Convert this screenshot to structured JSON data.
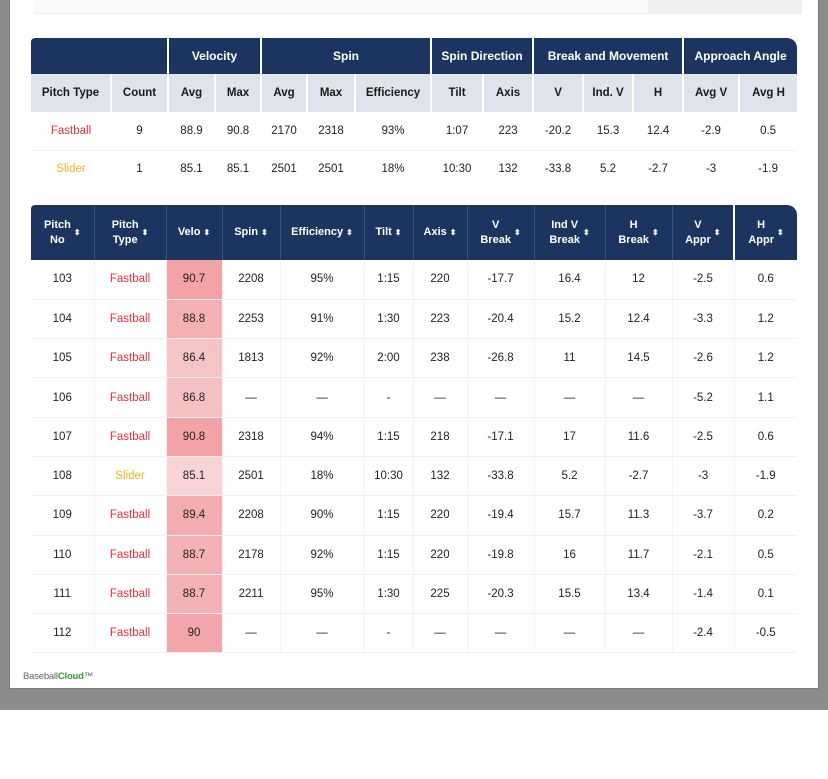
{
  "summary": {
    "groups": [
      {
        "label": ""
      },
      {
        "label": "Velocity"
      },
      {
        "label": "Spin"
      },
      {
        "label": "Spin Direction"
      },
      {
        "label": "Break and Movement"
      },
      {
        "label": "Approach Angle"
      }
    ],
    "columns": [
      "Pitch Type",
      "Count",
      "Avg",
      "Max",
      "Avg",
      "Max",
      "Efficiency",
      "Tilt",
      "Axis",
      "V",
      "Ind. V",
      "H",
      "Avg V",
      "Avg H"
    ],
    "rows": [
      {
        "type": "Fastball",
        "cells": [
          "Fastball",
          "9",
          "88.9",
          "90.8",
          "2170",
          "2318",
          "93%",
          "1:07",
          "223",
          "-20.2",
          "15.3",
          "12.4",
          "-2.9",
          "0.5"
        ]
      },
      {
        "type": "Slider",
        "cells": [
          "Slider",
          "1",
          "85.1",
          "85.1",
          "2501",
          "2501",
          "18%",
          "10:30",
          "132",
          "-33.8",
          "5.2",
          "-2.7",
          "-3",
          "-1.9"
        ]
      }
    ]
  },
  "pitches": {
    "columns": [
      {
        "line1": "Pitch",
        "line2": "No"
      },
      {
        "line1": "Pitch",
        "line2": "Type"
      },
      {
        "line1": "Velo",
        "line2": ""
      },
      {
        "line1": "Spin",
        "line2": ""
      },
      {
        "line1": "Efficiency",
        "line2": ""
      },
      {
        "line1": "Tilt",
        "line2": ""
      },
      {
        "line1": "Axis",
        "line2": ""
      },
      {
        "line1": "V",
        "line2": "Break"
      },
      {
        "line1": "Ind V",
        "line2": "Break"
      },
      {
        "line1": "H",
        "line2": "Break"
      },
      {
        "line1": "V",
        "line2": "Appr"
      },
      {
        "line1": "H",
        "line2": "Appr"
      }
    ],
    "sort_glyph": "⬍",
    "rows": [
      {
        "type": "Fastball",
        "velo_shade": "#f3a3a6",
        "cells": [
          "103",
          "Fastball",
          "90.7",
          "2208",
          "95%",
          "1:15",
          "220",
          "-17.7",
          "16.4",
          "12",
          "-2.5",
          "0.6"
        ]
      },
      {
        "type": "Fastball",
        "velo_shade": "#f4b0b2",
        "cells": [
          "104",
          "Fastball",
          "88.8",
          "2253",
          "91%",
          "1:30",
          "223",
          "-20.4",
          "15.2",
          "12.4",
          "-3.3",
          "1.2"
        ]
      },
      {
        "type": "Fastball",
        "velo_shade": "#f6c4c5",
        "cells": [
          "105",
          "Fastball",
          "86.4",
          "1813",
          "92%",
          "2:00",
          "238",
          "-26.8",
          "11",
          "14.5",
          "-2.6",
          "1.2"
        ]
      },
      {
        "type": "Fastball",
        "velo_shade": "#f5c1c2",
        "cells": [
          "106",
          "Fastball",
          "86.8",
          "—",
          "—",
          "-",
          "—",
          "—",
          "—",
          "—",
          "-5.2",
          "1.1"
        ]
      },
      {
        "type": "Fastball",
        "velo_shade": "#f3a3a6",
        "cells": [
          "107",
          "Fastball",
          "90.8",
          "2318",
          "94%",
          "1:15",
          "218",
          "-17.1",
          "17",
          "11.6",
          "-2.5",
          "0.6"
        ]
      },
      {
        "type": "Slider",
        "velo_shade": "#f8d4d5",
        "cells": [
          "108",
          "Slider",
          "85.1",
          "2501",
          "18%",
          "10:30",
          "132",
          "-33.8",
          "5.2",
          "-2.7",
          "-3",
          "-1.9"
        ]
      },
      {
        "type": "Fastball",
        "velo_shade": "#f4acae",
        "cells": [
          "109",
          "Fastball",
          "89.4",
          "2208",
          "90%",
          "1:15",
          "220",
          "-19.4",
          "15.7",
          "11.3",
          "-3.7",
          "0.2"
        ]
      },
      {
        "type": "Fastball",
        "velo_shade": "#f4b1b3",
        "cells": [
          "110",
          "Fastball",
          "88.7",
          "2178",
          "92%",
          "1:15",
          "220",
          "-19.8",
          "16",
          "11.7",
          "-2.1",
          "0.5"
        ]
      },
      {
        "type": "Fastball",
        "velo_shade": "#f4b1b3",
        "cells": [
          "111",
          "Fastball",
          "88.7",
          "2211",
          "95%",
          "1:30",
          "225",
          "-20.3",
          "15.5",
          "13.4",
          "-1.4",
          "0.1"
        ]
      },
      {
        "type": "Fastball",
        "velo_shade": "#f3a6a9",
        "cells": [
          "112",
          "Fastball",
          "90",
          "—",
          "—",
          "-",
          "—",
          "—",
          "—",
          "—",
          "-2.4",
          "-0.5"
        ]
      }
    ]
  },
  "brand": {
    "part1": "Baseball",
    "part2": "Cloud",
    "mark": "™"
  },
  "colors": {
    "header_navy": "#1b3560",
    "subheader_gray": "#dfe3ea",
    "fastball": "#e0313a",
    "slider": "#efb41d",
    "brand_green": "#3a9a3a"
  }
}
